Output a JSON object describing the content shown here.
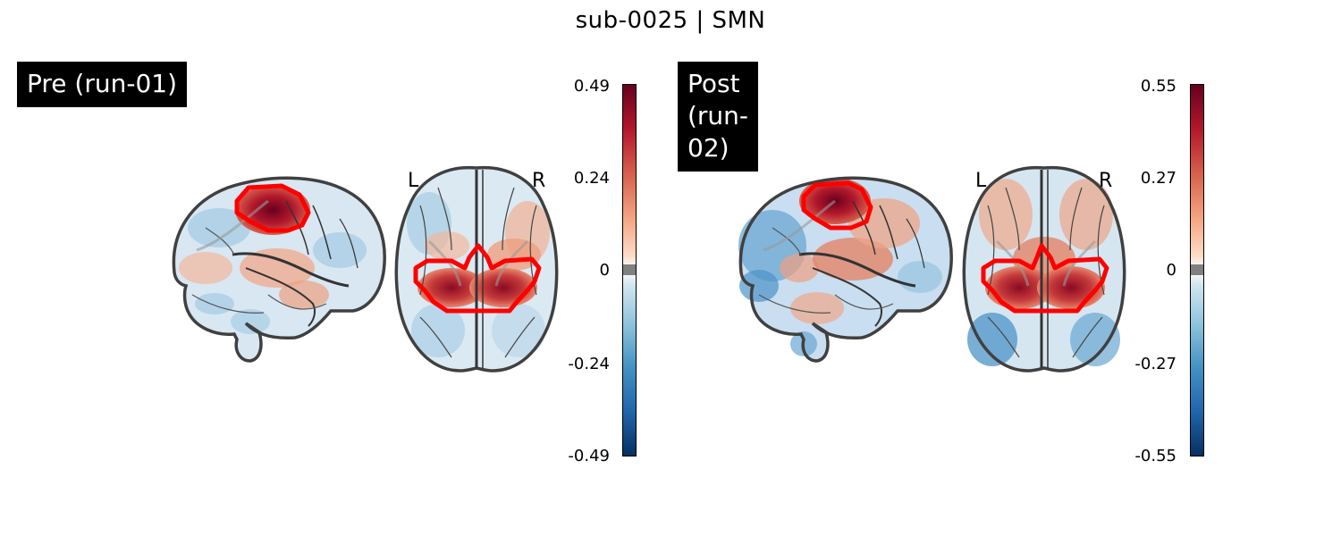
{
  "figure": {
    "title": "sub-0025 | SMN"
  },
  "panels": [
    {
      "label": "Pre (run-01)",
      "left_marker": "L",
      "right_marker": "R",
      "colorbar": {
        "cmap": "RdBu_r",
        "ticks": [
          "0.49",
          "0.24",
          "0",
          "-0.24",
          "-0.49"
        ]
      }
    },
    {
      "label": "Post (run-02)",
      "left_marker": "L",
      "right_marker": "R",
      "colorbar": {
        "cmap": "RdBu_r",
        "ticks": [
          "0.55",
          "0.27",
          "0",
          "-0.27",
          "-0.55"
        ]
      }
    }
  ],
  "colors": {
    "roi_outline": "#ff0000",
    "positive": "#b2182b",
    "negative": "#2166ac",
    "null_band": "#808080",
    "outline": "#404040"
  }
}
